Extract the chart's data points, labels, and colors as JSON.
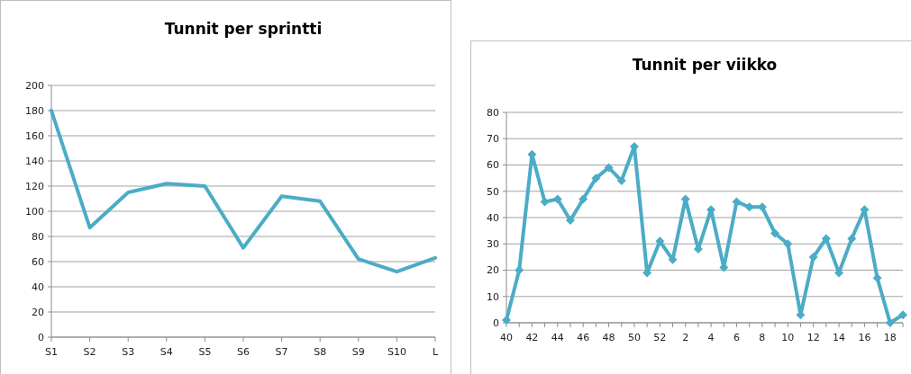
{
  "chart_data": [
    {
      "type": "line",
      "title": "Tunnit per sprintti",
      "categories": [
        "S1",
        "S2",
        "S3",
        "S4",
        "S5",
        "S6",
        "S7",
        "S8",
        "S9",
        "S10",
        "L"
      ],
      "series": [
        {
          "color": "#4bacc6",
          "values": [
            180,
            87,
            115,
            122,
            120,
            71,
            112,
            108,
            62,
            52,
            63
          ]
        }
      ],
      "ylim": [
        0,
        200
      ],
      "yticks": [
        0,
        20,
        40,
        60,
        80,
        100,
        120,
        140,
        160,
        180,
        200
      ],
      "grid": "y",
      "marker": "none",
      "line_style": "solid"
    },
    {
      "type": "line",
      "title": "Tunnit per viikko",
      "categories": [
        "40",
        null,
        "42",
        null,
        "44",
        null,
        "46",
        null,
        "48",
        null,
        "50",
        null,
        "52",
        null,
        "2",
        null,
        "4",
        null,
        "6",
        null,
        "8",
        null,
        "10",
        null,
        "12",
        null,
        "14",
        null,
        "16",
        null,
        "18",
        null
      ],
      "series": [
        {
          "color": "#4bacc6",
          "values": [
            1,
            20,
            64,
            46,
            47,
            39,
            47,
            55,
            59,
            54,
            67,
            19,
            31,
            24,
            47,
            28,
            43,
            21,
            46,
            44,
            44,
            34,
            30,
            3,
            25,
            32,
            19,
            32,
            43,
            17,
            0,
            3
          ]
        }
      ],
      "ylim": [
        0,
        80
      ],
      "yticks": [
        0,
        10,
        20,
        30,
        40,
        50,
        60,
        70,
        80
      ],
      "grid": "y",
      "marker": "diamond",
      "line_style": "solid"
    }
  ]
}
